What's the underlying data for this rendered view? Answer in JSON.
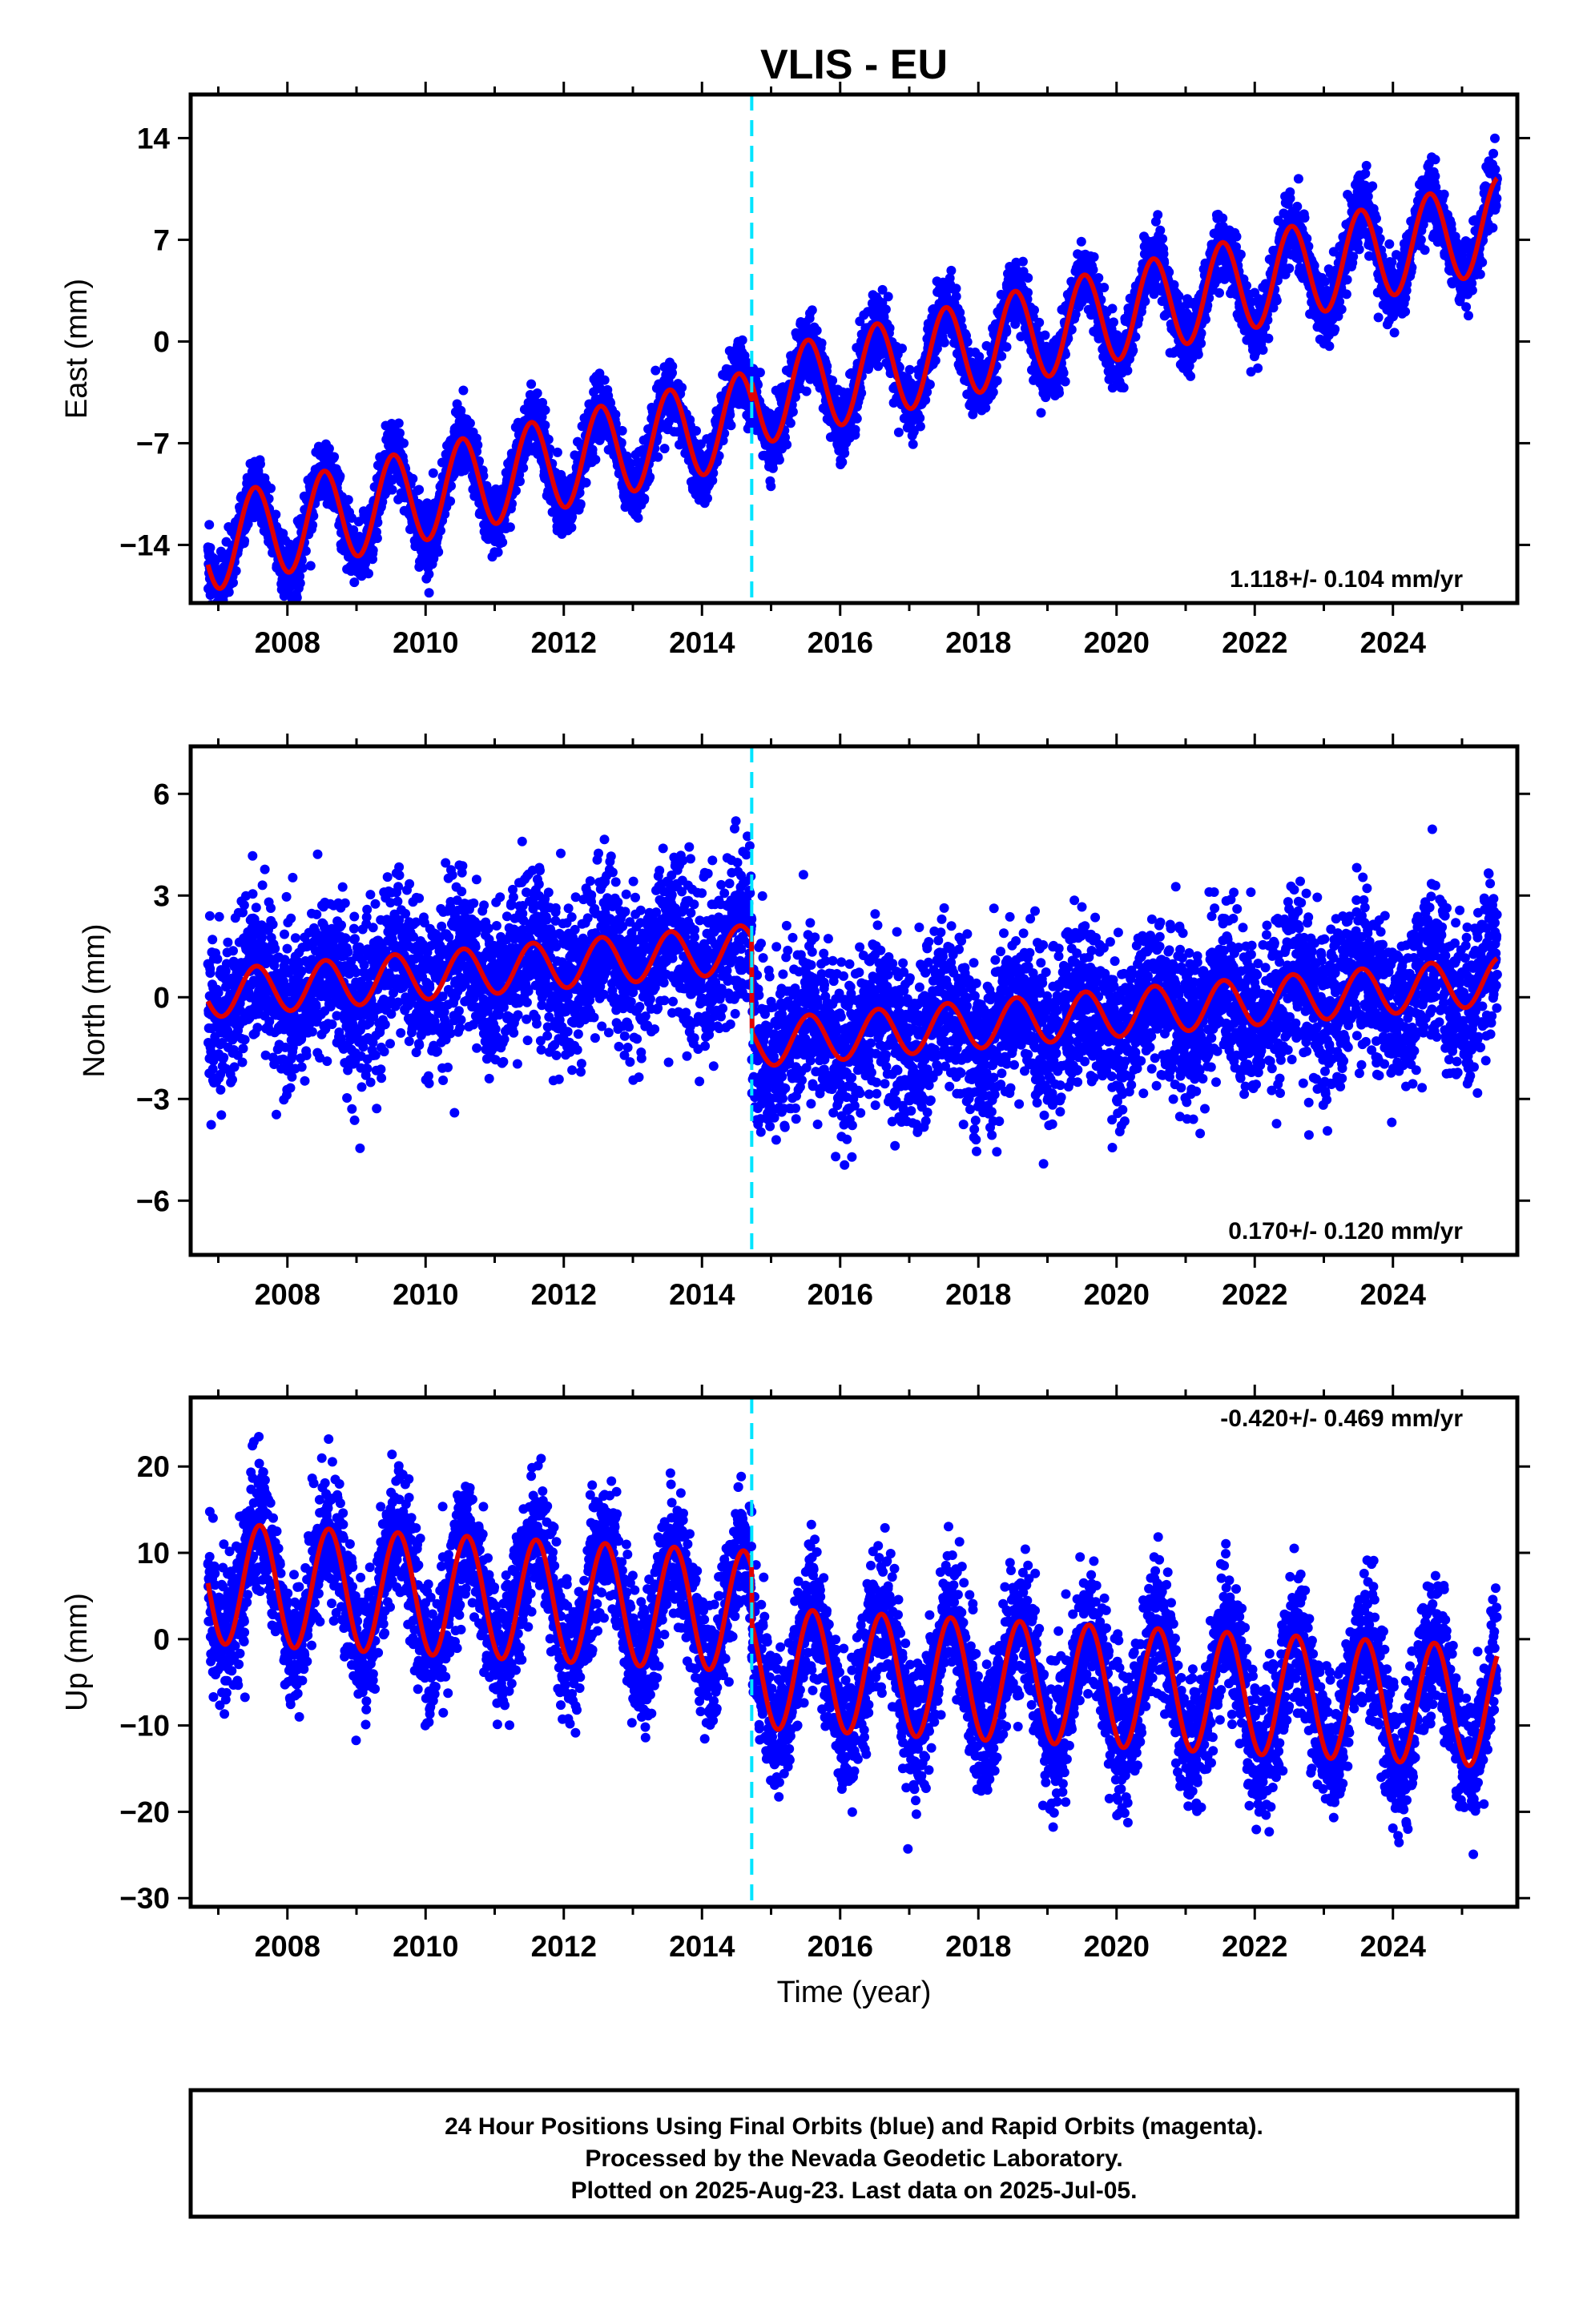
{
  "colors": {
    "final_orbits": "#0000ff",
    "rapid_orbits": "#ff00ff",
    "model": "#e00000",
    "equipment_change": "#00e5ff",
    "frame": "#000000",
    "background": "#ffffff"
  },
  "chart_data": {
    "type": "scatter",
    "title": "VLIS - EU",
    "xlabel": "Time (year)",
    "xlim": [
      2006.6,
      2025.8
    ],
    "x_ticks": [
      "2008",
      "2010",
      "2012",
      "2014",
      "2016",
      "2018",
      "2020",
      "2022",
      "2024"
    ],
    "data_start": 2006.85,
    "data_end": 2025.51,
    "equipment_change_year": 2014.72,
    "panels": [
      {
        "ylabel": "East (mm)",
        "ylim": [
          -18,
          17
        ],
        "y_ticks": [
          "14",
          "7",
          "0",
          "-7",
          "-14"
        ],
        "rate_label": "1.118+/- 0.104 mm/yr",
        "rate_position": "bottom-right",
        "model": {
          "rate_mm_per_yr": 1.118,
          "offset_at_start": -14.0,
          "jump_at_change": 1.2,
          "annual_amplitude": 3.2,
          "peak_phase_year_fraction": 0.53,
          "noise_sd": 1.1
        },
        "series": [
          {
            "name": "Final Orbits (blue)",
            "marker": "dot",
            "daily_points": true
          },
          {
            "name": "model fit",
            "marker": "line"
          }
        ]
      },
      {
        "ylabel": "North (mm)",
        "ylim": [
          -7.6,
          7.4
        ],
        "y_ticks": [
          "6",
          "3",
          "0",
          "-3",
          "-6"
        ],
        "rate_label": "0.170+/- 0.120 mm/yr",
        "rate_position": "bottom-right",
        "model": {
          "rate_mm_per_yr": 0.17,
          "offset_at_start": 0.1,
          "jump_at_change": -2.8,
          "annual_amplitude": 0.7,
          "peak_phase_year_fraction": 0.55,
          "noise_sd": 1.2
        },
        "series": [
          {
            "name": "Final Orbits (blue)",
            "marker": "dot",
            "daily_points": true
          },
          {
            "name": "model fit",
            "marker": "line"
          }
        ]
      },
      {
        "ylabel": "Up (mm)",
        "ylim": [
          -31,
          28
        ],
        "y_ticks": [
          "20",
          "10",
          "0",
          "-10",
          "-20",
          "-30"
        ],
        "rate_label": "-0.420+/- 0.469 mm/yr",
        "rate_position": "top-right",
        "model": {
          "rate_mm_per_yr": -0.42,
          "offset_at_start": 6.5,
          "jump_at_change": -6.5,
          "annual_amplitude": 7.0,
          "peak_phase_year_fraction": 0.6,
          "noise_sd": 3.8
        },
        "series": [
          {
            "name": "Final Orbits (blue)",
            "marker": "dot",
            "daily_points": true
          },
          {
            "name": "model fit",
            "marker": "line"
          }
        ]
      }
    ]
  },
  "footer": {
    "line1": "24 Hour Positions Using Final Orbits (blue) and Rapid Orbits (magenta).",
    "line2": "Processed by the Nevada Geodetic Laboratory.",
    "line3": "Plotted on 2025-Aug-23. Last data on 2025-Jul-05."
  }
}
